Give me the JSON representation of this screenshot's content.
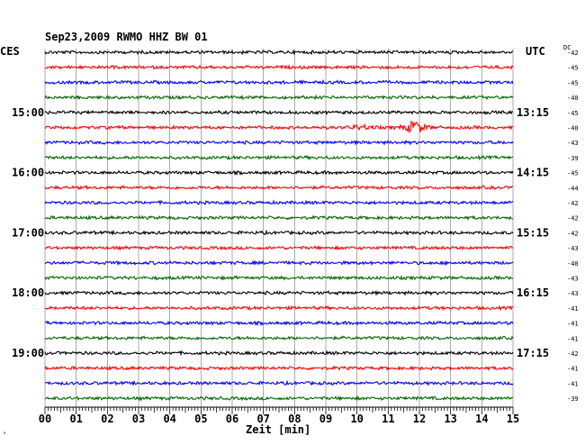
{
  "header": {
    "title": "Sep23,2009   RWMO HHZ BW 01",
    "left_tz": "CES",
    "right_tz": "UTC",
    "dc_label": "DC"
  },
  "footer": {
    "xlabel": "Zeit [min]",
    "corner_mark": "ᵃ"
  },
  "colors": {
    "cycle": [
      "#000000",
      "#ff0000",
      "#0000ff",
      "#006600"
    ],
    "grid": "#000000"
  },
  "chart_data": {
    "type": "line",
    "xlim": [
      0,
      15
    ],
    "x_ticks": [
      "00",
      "01",
      "02",
      "03",
      "04",
      "05",
      "06",
      "07",
      "08",
      "09",
      "10",
      "11",
      "12",
      "13",
      "14",
      "15"
    ],
    "xlabel": "Zeit [min]",
    "trace_count": 24,
    "left_time_labels": [
      {
        "trace": 4,
        "label": "15:00"
      },
      {
        "trace": 8,
        "label": "16:00"
      },
      {
        "trace": 12,
        "label": "17:00"
      },
      {
        "trace": 16,
        "label": "18:00"
      },
      {
        "trace": 20,
        "label": "19:00"
      }
    ],
    "right_time_labels": [
      {
        "trace": 4,
        "label": "13:15"
      },
      {
        "trace": 8,
        "label": "14:15"
      },
      {
        "trace": 12,
        "label": "15:15"
      },
      {
        "trace": 16,
        "label": "16:15"
      },
      {
        "trace": 20,
        "label": "17:15"
      }
    ],
    "dc_values": [
      "-42",
      "-45",
      "-45",
      "-40",
      "-45",
      "-40",
      "-43",
      "-39",
      "-45",
      "-44",
      "-42",
      "-42",
      "-42",
      "-43",
      "-40",
      "-43",
      "-43",
      "-41",
      "-41",
      "-41",
      "-42",
      "-41",
      "-41",
      "-39"
    ],
    "events": [
      {
        "trace": 5,
        "minute": 11.85,
        "amplitude": 9
      },
      {
        "trace": 5,
        "minute": 10.15,
        "amplitude": 3
      }
    ]
  }
}
